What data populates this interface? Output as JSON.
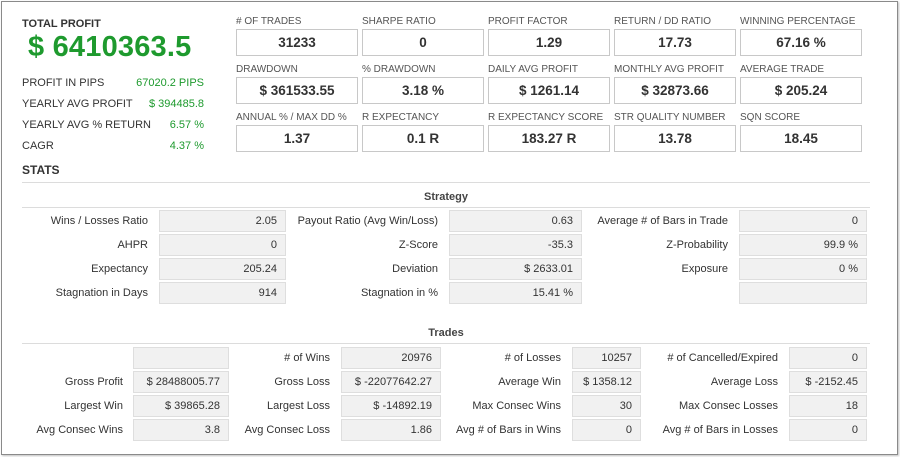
{
  "total": {
    "label": "TOTAL PROFIT",
    "value": "$ 6410363.5",
    "rows": [
      {
        "label": "PROFIT IN PIPS",
        "value": "67020.2 PIPS"
      },
      {
        "label": "YEARLY AVG PROFIT",
        "value": "$ 394485.8"
      },
      {
        "label": "YEARLY AVG % RETURN",
        "value": "6.57 %"
      },
      {
        "label": "CAGR",
        "value": "4.37 %"
      }
    ]
  },
  "metrics": [
    {
      "label": "# OF TRADES",
      "value": "31233"
    },
    {
      "label": "SHARPE RATIO",
      "value": "0"
    },
    {
      "label": "PROFIT FACTOR",
      "value": "1.29"
    },
    {
      "label": "RETURN / DD RATIO",
      "value": "17.73"
    },
    {
      "label": "WINNING PERCENTAGE",
      "value": "67.16 %"
    },
    {
      "label": "DRAWDOWN",
      "value": "$ 361533.55"
    },
    {
      "label": "% DRAWDOWN",
      "value": "3.18 %"
    },
    {
      "label": "DAILY AVG PROFIT",
      "value": "$ 1261.14"
    },
    {
      "label": "MONTHLY AVG PROFIT",
      "value": "$ 32873.66"
    },
    {
      "label": "AVERAGE TRADE",
      "value": "$ 205.24"
    },
    {
      "label": "ANNUAL % / MAX DD %",
      "value": "1.37"
    },
    {
      "label": "R EXPECTANCY",
      "value": "0.1 R"
    },
    {
      "label": "R EXPECTANCY SCORE",
      "value": "183.27 R"
    },
    {
      "label": "STR QUALITY NUMBER",
      "value": "13.78"
    },
    {
      "label": "SQN SCORE",
      "value": "18.45"
    }
  ],
  "stats_title": "STATS",
  "strategy": {
    "title": "Strategy",
    "rows": [
      [
        {
          "label": "Wins / Losses Ratio",
          "value": "2.05"
        },
        {
          "label": "Payout Ratio (Avg Win/Loss)",
          "value": "0.63"
        },
        {
          "label": "Average # of Bars in Trade",
          "value": "0"
        }
      ],
      [
        {
          "label": "AHPR",
          "value": "0"
        },
        {
          "label": "Z-Score",
          "value": "-35.3"
        },
        {
          "label": "Z-Probability",
          "value": "99.9 %"
        }
      ],
      [
        {
          "label": "Expectancy",
          "value": "205.24"
        },
        {
          "label": "Deviation",
          "value": "$ 2633.01"
        },
        {
          "label": "Exposure",
          "value": "0 %"
        }
      ],
      [
        {
          "label": "Stagnation in Days",
          "value": "914"
        },
        {
          "label": "Stagnation in %",
          "value": "15.41 %"
        },
        {
          "label": "",
          "value": ""
        }
      ]
    ]
  },
  "trades": {
    "title": "Trades",
    "rows": [
      [
        {
          "label": "",
          "value": ""
        },
        {
          "label": "# of Wins",
          "value": "20976"
        },
        {
          "label": "# of Losses",
          "value": "10257"
        },
        {
          "label": "# of Cancelled/Expired",
          "value": "0"
        }
      ],
      [
        {
          "label": "Gross Profit",
          "value": "$ 28488005.77"
        },
        {
          "label": "Gross Loss",
          "value": "$ -22077642.27"
        },
        {
          "label": "Average Win",
          "value": "$ 1358.12"
        },
        {
          "label": "Average Loss",
          "value": "$ -2152.45"
        }
      ],
      [
        {
          "label": "Largest Win",
          "value": "$ 39865.28"
        },
        {
          "label": "Largest Loss",
          "value": "$ -14892.19"
        },
        {
          "label": "Max Consec Wins",
          "value": "30"
        },
        {
          "label": "Max Consec Losses",
          "value": "18"
        }
      ],
      [
        {
          "label": "Avg Consec Wins",
          "value": "3.8"
        },
        {
          "label": "Avg Consec Loss",
          "value": "1.86"
        },
        {
          "label": "Avg # of Bars in Wins",
          "value": "0"
        },
        {
          "label": "Avg # of Bars in Losses",
          "value": "0"
        }
      ]
    ]
  },
  "colors": {
    "profit_green": "#1e9a2e",
    "field_bg": "#f1f1f1",
    "card_border": "#c8c8c8"
  }
}
